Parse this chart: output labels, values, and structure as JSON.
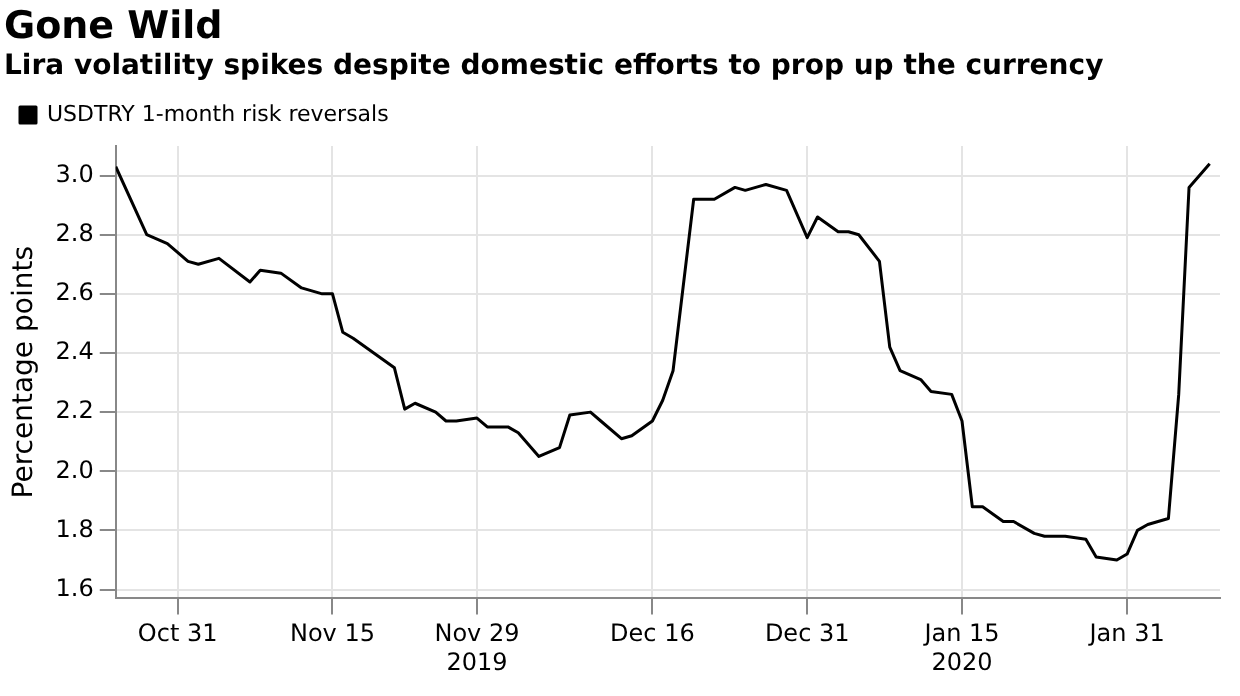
{
  "chart_data": {
    "type": "line",
    "title": "Gone Wild",
    "subtitle": "Lira volatility spikes despite domestic efforts to prop up the currency",
    "ylabel": "Percentage points",
    "legend": "top left",
    "grid": true,
    "marker": "none",
    "line_style": "solid",
    "xlim": [
      "2019-10-25",
      "2020-02-09"
    ],
    "xticks": [
      {
        "value": "2019-10-31",
        "label": "Oct 31"
      },
      {
        "value": "2019-11-15",
        "label": "Nov 15"
      },
      {
        "value": "2019-11-29",
        "label": "Nov 29\n2019"
      },
      {
        "value": "2019-12-16",
        "label": "Dec 16"
      },
      {
        "value": "2019-12-31",
        "label": "Dec 31"
      },
      {
        "value": "2020-01-15",
        "label": "Jan 15\n2020"
      },
      {
        "value": "2020-01-31",
        "label": "Jan 31"
      }
    ],
    "ylim": [
      1.57,
      3.1
    ],
    "yticks": [
      {
        "value": 1.6,
        "label": "1.6"
      },
      {
        "value": 1.8,
        "label": "1.8"
      },
      {
        "value": 2,
        "label": "2.0"
      },
      {
        "value": 2.2,
        "label": "2.2"
      },
      {
        "value": 2.4,
        "label": "2.4"
      },
      {
        "value": 2.6,
        "label": "2.6"
      },
      {
        "value": 2.8,
        "label": "2.8"
      },
      {
        "value": 3,
        "label": "3.0"
      }
    ],
    "x": [
      "2019-10-25",
      "2019-10-28",
      "2019-10-30",
      "2019-11-01",
      "2019-11-02",
      "2019-11-04",
      "2019-11-07",
      "2019-11-08",
      "2019-11-10",
      "2019-11-12",
      "2019-11-14",
      "2019-11-15",
      "2019-11-16",
      "2019-11-17",
      "2019-11-19",
      "2019-11-21",
      "2019-11-22",
      "2019-11-23",
      "2019-11-25",
      "2019-11-26",
      "2019-11-27",
      "2019-11-29",
      "2019-11-30",
      "2019-12-02",
      "2019-12-03",
      "2019-12-05",
      "2019-12-07",
      "2019-12-08",
      "2019-12-10",
      "2019-12-11",
      "2019-12-13",
      "2019-12-14",
      "2019-12-16",
      "2019-12-17",
      "2019-12-18",
      "2019-12-20",
      "2019-12-22",
      "2019-12-24",
      "2019-12-25",
      "2019-12-27",
      "2019-12-29",
      "2019-12-31",
      "2020-01-01",
      "2020-01-03",
      "2020-01-04",
      "2020-01-05",
      "2020-01-07",
      "2020-01-08",
      "2020-01-09",
      "2020-01-11",
      "2020-01-12",
      "2020-01-14",
      "2020-01-15",
      "2020-01-16",
      "2020-01-17",
      "2020-01-19",
      "2020-01-20",
      "2020-01-22",
      "2020-01-23",
      "2020-01-25",
      "2020-01-27",
      "2020-01-28",
      "2020-01-30",
      "2020-01-31",
      "2020-02-01",
      "2020-02-02",
      "2020-02-04",
      "2020-02-05",
      "2020-02-06",
      "2020-02-08"
    ],
    "series": [
      {
        "name": "USDTRY 1-month risk reversals",
        "color": "#000000",
        "values": [
          3.03,
          2.8,
          2.77,
          2.71,
          2.7,
          2.72,
          2.64,
          2.68,
          2.67,
          2.62,
          2.6,
          2.6,
          2.47,
          2.45,
          2.4,
          2.35,
          2.21,
          2.23,
          2.2,
          2.17,
          2.17,
          2.18,
          2.15,
          2.15,
          2.13,
          2.05,
          2.08,
          2.19,
          2.2,
          2.17,
          2.11,
          2.12,
          2.17,
          2.24,
          2.34,
          2.92,
          2.92,
          2.96,
          2.95,
          2.97,
          2.95,
          2.79,
          2.86,
          2.81,
          2.81,
          2.8,
          2.71,
          2.42,
          2.34,
          2.31,
          2.27,
          2.26,
          2.17,
          1.88,
          1.88,
          1.83,
          1.83,
          1.79,
          1.78,
          1.78,
          1.77,
          1.71,
          1.7,
          1.72,
          1.8,
          1.82,
          1.84,
          2.26,
          2.96,
          3.04
        ]
      }
    ]
  }
}
